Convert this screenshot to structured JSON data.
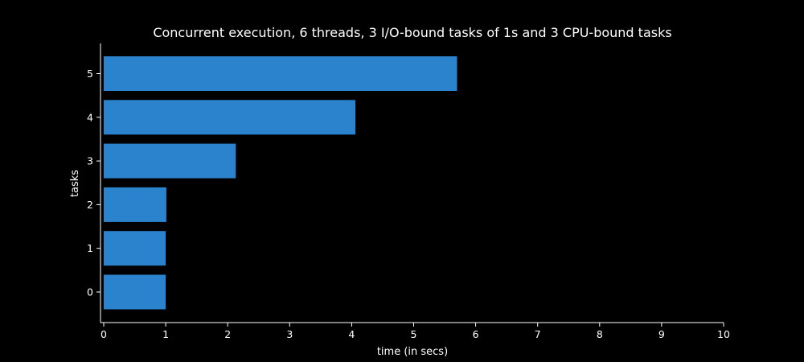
{
  "chart_data": {
    "type": "bar",
    "orientation": "horizontal",
    "title": "Concurrent execution, 6 threads, 3 I/O-bound tasks of 1s and 3 CPU-bound tasks",
    "xlabel": "time (in secs)",
    "ylabel": "tasks",
    "xlim": [
      0,
      10
    ],
    "xticks": [
      "0",
      "1",
      "2",
      "3",
      "4",
      "5",
      "6",
      "7",
      "8",
      "9",
      "10"
    ],
    "yticks": [
      "0",
      "1",
      "2",
      "3",
      "4",
      "5"
    ],
    "bars": [
      {
        "task": "0",
        "start": 0.0,
        "end": 1.0
      },
      {
        "task": "1",
        "start": 0.0,
        "end": 1.0
      },
      {
        "task": "2",
        "start": 0.0,
        "end": 1.01
      },
      {
        "task": "3",
        "start": 0.0,
        "end": 2.13
      },
      {
        "task": "4",
        "start": 0.0,
        "end": 4.06
      },
      {
        "task": "5",
        "start": 0.0,
        "end": 5.7
      }
    ],
    "bar_color": "#2a83cc",
    "axis_color": "#ffffff",
    "background": "#000000",
    "grid": false,
    "legend": "none"
  }
}
